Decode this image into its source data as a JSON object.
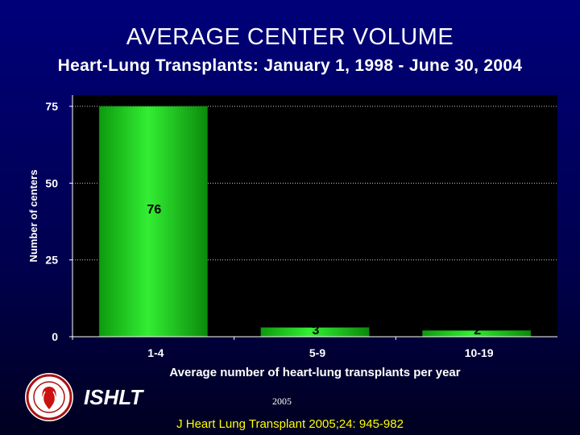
{
  "slide": {
    "title": "AVERAGE CENTER VOLUME",
    "subtitle": "Heart-Lung Transplants: January 1, 1998 - June 30, 2004",
    "org_name": "ISHLT",
    "year": "2005",
    "citation": "J Heart Lung Transplant 2005;24: 945-982",
    "logo_icon": "ishlt-seal-icon"
  },
  "colors": {
    "background": "#00007a",
    "plot_area": "#000000",
    "bar": "#22dd22",
    "bar_label": "#000000",
    "citation": "#ffff00",
    "grid": "#cccccc"
  },
  "chart_data": {
    "type": "bar",
    "categories": [
      "1-4",
      "5-9",
      "10-19"
    ],
    "values": [
      76,
      3,
      2
    ],
    "data_labels": [
      "76",
      "3",
      "2"
    ],
    "xlabel": "Average number of heart-lung transplants per year",
    "ylabel": "Number of centers",
    "ylim": [
      0,
      75
    ],
    "yticks": [
      0,
      25,
      50,
      75
    ],
    "grid": true,
    "legend": "none"
  }
}
